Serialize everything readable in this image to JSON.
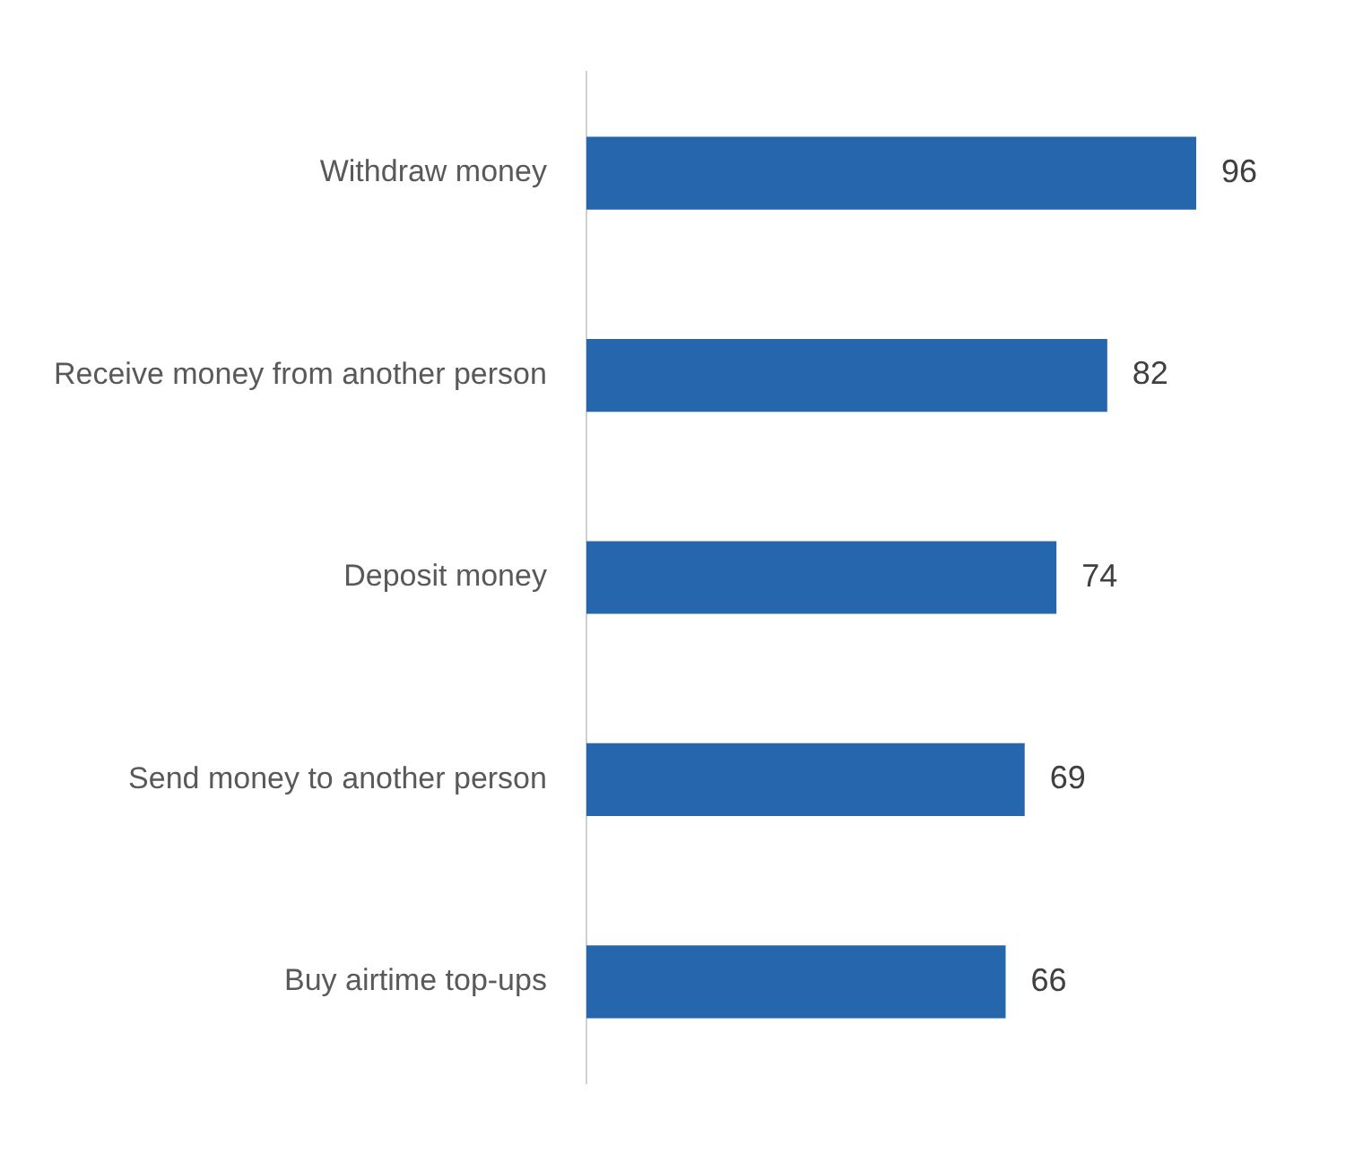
{
  "chart_data": {
    "type": "bar",
    "orientation": "horizontal",
    "categories": [
      "Withdraw money",
      "Receive money from another person",
      "Deposit money",
      "Send money to another person",
      "Buy airtime top-ups"
    ],
    "values": [
      96,
      82,
      74,
      69,
      66
    ],
    "color": "#2566ad",
    "data_labels": true,
    "legend": false
  }
}
